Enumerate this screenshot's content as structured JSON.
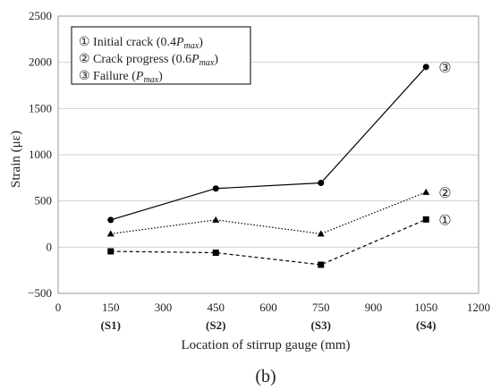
{
  "chart_data": {
    "type": "line",
    "xlabel": "Location of stirrup gauge (mm)",
    "ylabel": "Strain (με)",
    "xlim": [
      0,
      1200
    ],
    "ylim": [
      -500,
      2500
    ],
    "x_ticks": [
      "0",
      "150",
      "300",
      "450",
      "600",
      "750",
      "900",
      "1050",
      "1200"
    ],
    "y_ticks": [
      "−500",
      "0",
      "500",
      "1000",
      "1500",
      "2000",
      "2500"
    ],
    "x": [
      150,
      450,
      750,
      1050
    ],
    "sensor_labels": [
      "(S1)",
      "(S2)",
      "(S3)",
      "(S4)"
    ],
    "series": [
      {
        "name": "① Initial crack (0.4Pmax)",
        "legend_main": "① Initial crack (0.4",
        "legend_var": "P",
        "legend_sub": "max",
        "legend_end": ")",
        "end_marker": "①",
        "values": [
          -45,
          -60,
          -190,
          300
        ],
        "marker": "square",
        "dash": "dashed",
        "color": "#000000"
      },
      {
        "name": "② Crack progress (0.6Pmax)",
        "legend_main": "② Crack progress (0.6",
        "legend_var": "P",
        "legend_sub": "max",
        "legend_end": ")",
        "end_marker": "②",
        "values": [
          145,
          295,
          145,
          595
        ],
        "marker": "triangle",
        "dash": "dotted",
        "color": "#000000"
      },
      {
        "name": "③ Failure (Pmax)",
        "legend_main": "③ Failure (",
        "legend_var": "P",
        "legend_sub": "max",
        "legend_end": ")",
        "end_marker": "③",
        "values": [
          295,
          635,
          695,
          1950
        ],
        "marker": "circle",
        "dash": "solid",
        "color": "#000000"
      }
    ],
    "caption": "(b)",
    "grid": "horizontal",
    "legend_position": "top-left"
  }
}
